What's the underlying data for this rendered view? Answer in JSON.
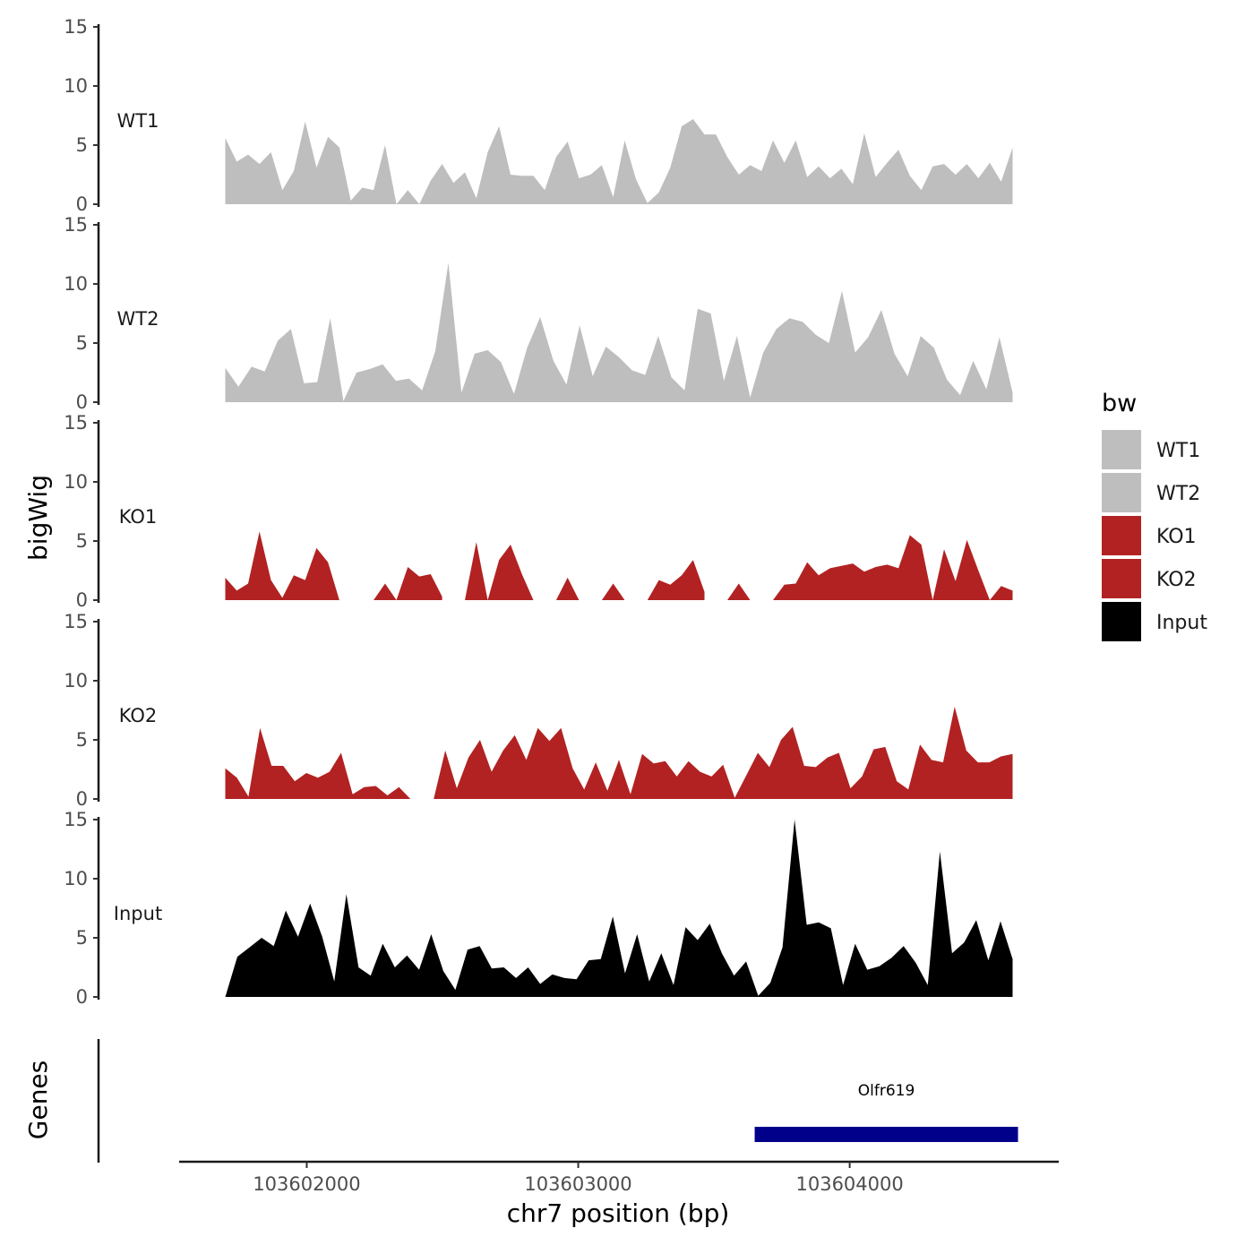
{
  "chart_data": {
    "type": "area",
    "title": "",
    "ylabel": "bigWig",
    "xlabel": "chr7 position (bp)",
    "chromosome": "chr7",
    "xlim": [
      103601530,
      103604770
    ],
    "region": [
      103601700,
      103604600
    ],
    "ylim": [
      0,
      15
    ],
    "yticks": [
      0,
      5,
      10,
      15
    ],
    "xticks": [
      103602000,
      103603000,
      103604000
    ],
    "xtick_labels": [
      "103602000",
      "103603000",
      "103604000"
    ],
    "legend": {
      "title": "bw",
      "position": "right",
      "entries": [
        "WT1",
        "WT2",
        "KO1",
        "KO2",
        "Input"
      ]
    },
    "series": [
      {
        "name": "WT1",
        "color": "#BEBEBE",
        "values": [
          5.6,
          3.6,
          4.2,
          3.4,
          4.4,
          1.2,
          2.8,
          7,
          3.1,
          5.7,
          4.8,
          0.3,
          1.4,
          1.2,
          5,
          0,
          1.2,
          0,
          2,
          3.4,
          1.8,
          2.7,
          0.5,
          4.4,
          6.6,
          2.5,
          2.4,
          2.4,
          1.2,
          4,
          5.3,
          2.2,
          2.5,
          3.3,
          0.6,
          5.4,
          2.1,
          0.1,
          1,
          3.1,
          6.6,
          7.2,
          5.9,
          5.9,
          4,
          2.5,
          3.3,
          2.8,
          5.4,
          3.5,
          5.4,
          2.3,
          3.2,
          2.2,
          3,
          1.7,
          6,
          2.3,
          3.5,
          4.6,
          2.4,
          1.2,
          3.2,
          3.4,
          2.5,
          3.4,
          2.2,
          3.5,
          1.9,
          4.8
        ]
      },
      {
        "name": "WT2",
        "color": "#BEBEBE",
        "values": [
          2.9,
          1.3,
          3,
          2.6,
          5.2,
          6.2,
          1.6,
          1.7,
          7.1,
          0.1,
          2.5,
          2.8,
          3.2,
          1.8,
          2,
          1,
          4.3,
          11.8,
          0.8,
          4.1,
          4.4,
          3.4,
          0.7,
          4.6,
          7.2,
          3.5,
          1.5,
          6.5,
          2.2,
          4.7,
          3.8,
          2.7,
          2.3,
          5.6,
          2.1,
          1,
          7.9,
          7.5,
          1.8,
          5.6,
          0.4,
          4.2,
          6.2,
          7.1,
          6.8,
          5.7,
          5,
          9.4,
          4.2,
          5.5,
          7.8,
          4.1,
          2.2,
          5.6,
          4.6,
          1.9,
          0.6,
          3.5,
          1.1,
          5.5,
          0.8
        ]
      },
      {
        "name": "KO1",
        "color": "#B22222",
        "values": [
          1.9,
          0.8,
          1.4,
          5.8,
          1.7,
          0.2,
          2.1,
          1.7,
          4.4,
          3.2,
          0,
          null,
          null,
          0,
          1.4,
          0,
          2.8,
          2,
          2.2,
          0.3,
          null,
          0,
          4.9,
          0,
          3.4,
          4.7,
          2.2,
          0,
          null,
          0,
          1.9,
          0,
          null,
          0,
          1.4,
          0,
          null,
          0,
          1.7,
          1.3,
          2.1,
          3.4,
          0.7,
          null,
          0,
          1.4,
          0,
          null,
          0,
          1.3,
          1.4,
          3.2,
          2.1,
          2.7,
          2.9,
          3.1,
          2.4,
          2.8,
          3,
          2.7,
          5.5,
          4.7,
          0,
          4.3,
          1.6,
          5.1,
          2.5,
          0,
          1.2,
          0.8
        ]
      },
      {
        "name": "KO2",
        "color": "#B22222",
        "values": [
          2.6,
          1.8,
          0.2,
          6,
          2.8,
          2.8,
          1.5,
          2.2,
          1.8,
          2.3,
          3.9,
          0.4,
          1,
          1.1,
          0.3,
          1,
          0,
          null,
          0,
          4.1,
          0.9,
          3.5,
          5,
          2.3,
          4.1,
          5.4,
          3.3,
          6,
          4.9,
          6,
          2.6,
          0.8,
          3.1,
          0.7,
          3.3,
          0.4,
          3.8,
          3,
          3.2,
          1.9,
          3.2,
          2.3,
          1.9,
          2.9,
          0.1,
          2,
          3.9,
          2.7,
          5,
          6.1,
          2.8,
          2.7,
          3.5,
          3.9,
          0.9,
          1.9,
          4.2,
          4.4,
          1.5,
          0.8,
          4.6,
          3.3,
          3.1,
          7.8,
          4.1,
          3.1,
          3.1,
          3.6,
          3.8
        ]
      },
      {
        "name": "Input",
        "color": "#000000",
        "values": [
          0,
          3.4,
          4.2,
          5,
          4.3,
          7.3,
          5.1,
          7.9,
          5.1,
          1.3,
          8.7,
          2.5,
          1.8,
          4.5,
          2.5,
          3.5,
          2.3,
          5.3,
          2.2,
          0.6,
          4,
          4.3,
          2.4,
          2.5,
          1.6,
          2.5,
          1.1,
          1.9,
          1.6,
          1.5,
          3.1,
          3.2,
          6.8,
          2,
          5.3,
          1.3,
          3.7,
          1,
          5.9,
          4.8,
          6.2,
          3.7,
          1.8,
          3,
          0.1,
          1.2,
          4.2,
          15,
          6.1,
          6.3,
          5.8,
          1,
          4.5,
          2.3,
          2.6,
          3.3,
          4.3,
          2.9,
          1,
          12.3,
          3.7,
          4.6,
          6.5,
          3.1,
          6.4,
          3.2
        ]
      }
    ],
    "genes": {
      "track_label": "Genes",
      "items": [
        {
          "name": "Olfr619",
          "start": 103603650,
          "end": 103604620,
          "color": "#00008B"
        }
      ]
    }
  }
}
